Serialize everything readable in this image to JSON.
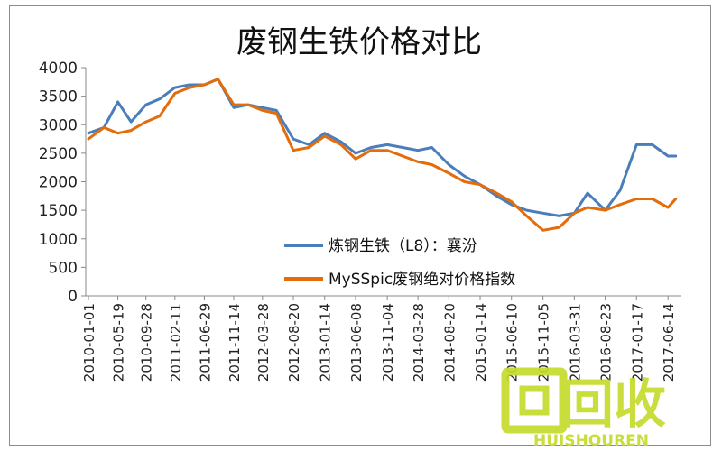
{
  "chart_data": {
    "type": "line",
    "title": "废钢生铁价格对比",
    "xlabel": "",
    "ylabel": "",
    "ylim": [
      0,
      4000
    ],
    "yticks": [
      0,
      500,
      1000,
      1500,
      2000,
      2500,
      3000,
      3500,
      4000
    ],
    "grid": false,
    "legend_position": "inside-bottom-right",
    "x_tick_labels": [
      "2010-01-01",
      "2010-05-19",
      "2010-09-28",
      "2011-02-11",
      "2011-06-29",
      "2011-11-14",
      "2012-03-28",
      "2012-08-20",
      "2013-01-14",
      "2013-06-08",
      "2013-11-04",
      "2014-03-28",
      "2014-08-20",
      "2015-01-14",
      "2015-06-10",
      "2015-11-05",
      "2016-03-31",
      "2016-08-23",
      "2017-01-17",
      "2017-06-14"
    ],
    "x": [
      "2010-01-01",
      "2010-03-15",
      "2010-05-19",
      "2010-07-20",
      "2010-09-28",
      "2010-12-01",
      "2011-02-11",
      "2011-04-20",
      "2011-06-29",
      "2011-09-01",
      "2011-11-14",
      "2012-01-20",
      "2012-03-28",
      "2012-06-01",
      "2012-08-20",
      "2012-11-01",
      "2013-01-14",
      "2013-04-01",
      "2013-06-08",
      "2013-08-20",
      "2013-11-04",
      "2014-01-15",
      "2014-03-28",
      "2014-06-01",
      "2014-08-20",
      "2014-11-01",
      "2015-01-14",
      "2015-04-01",
      "2015-06-10",
      "2015-08-20",
      "2015-11-05",
      "2016-01-20",
      "2016-03-31",
      "2016-06-01",
      "2016-08-23",
      "2016-11-01",
      "2017-01-17",
      "2017-04-01",
      "2017-06-14",
      "2017-07-20"
    ],
    "series": [
      {
        "name": "炼钢生铁（L8）：襄汾",
        "color": "#4a7ebb",
        "values": [
          2850,
          2950,
          3400,
          3050,
          3350,
          3450,
          3650,
          3700,
          3700,
          3800,
          3300,
          3350,
          3300,
          3250,
          2750,
          2650,
          2850,
          2700,
          2500,
          2600,
          2650,
          2600,
          2550,
          2600,
          2300,
          2100,
          1950,
          1750,
          1600,
          1500,
          1450,
          1400,
          1450,
          1800,
          1500,
          1850,
          2650,
          2650,
          2450,
          2450
        ]
      },
      {
        "name": "MySSpic废钢绝对价格指数",
        "color": "#e46c0a",
        "values": [
          2750,
          2950,
          2850,
          2900,
          3050,
          3150,
          3550,
          3650,
          3700,
          3800,
          3350,
          3350,
          3250,
          3200,
          2550,
          2600,
          2800,
          2650,
          2400,
          2550,
          2550,
          2450,
          2350,
          2300,
          2150,
          2000,
          1950,
          1800,
          1650,
          1400,
          1150,
          1200,
          1450,
          1550,
          1500,
          1600,
          1700,
          1700,
          1550,
          1700
        ]
      }
    ]
  },
  "watermark": {
    "main": "回收",
    "sub": "HUISHOUREN",
    "color": "#c5dc2c"
  }
}
